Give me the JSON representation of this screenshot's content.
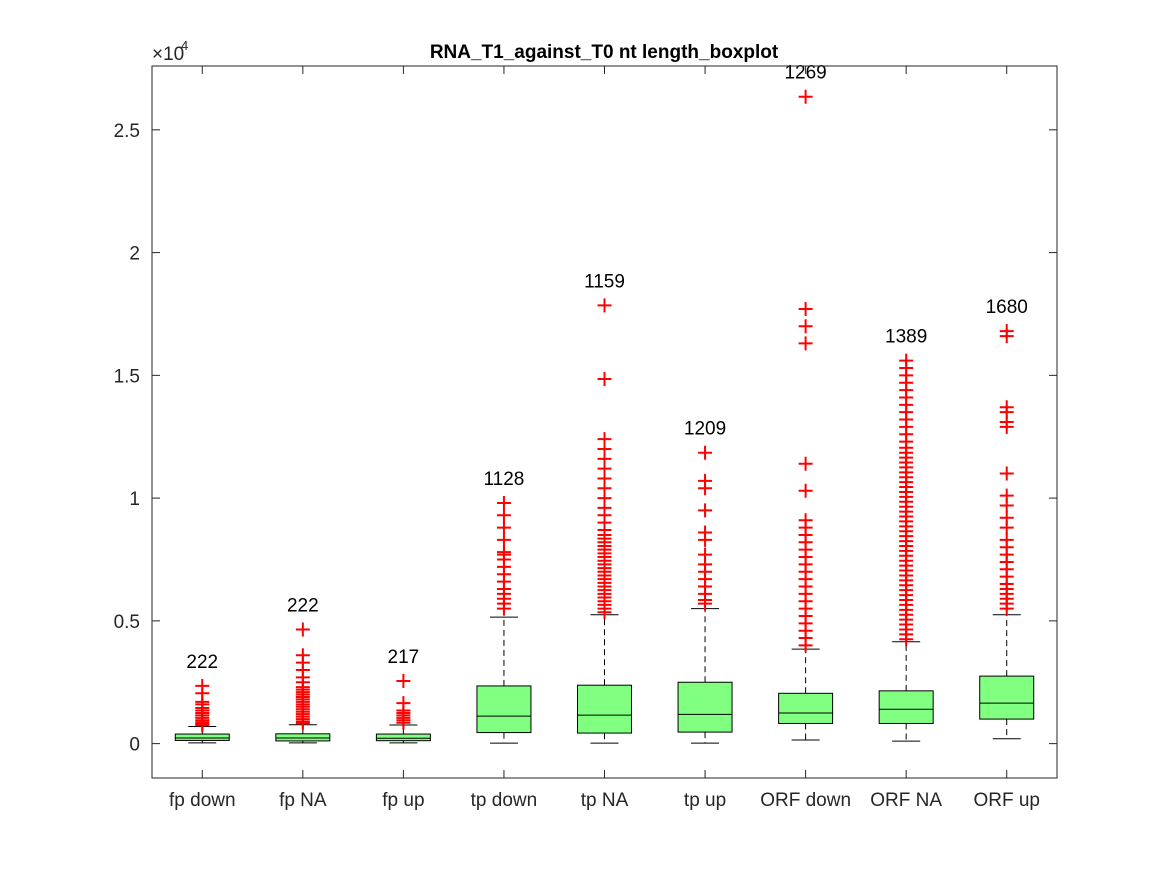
{
  "chart_data": {
    "type": "boxplot",
    "title": "RNA_T1_against_T0 nt length_boxplot",
    "xlabel": "",
    "ylabel": "",
    "y_exponent_label": "×10",
    "y_exponent_power": "4",
    "ylim": [
      -1400,
      27600
    ],
    "yticks": [
      0,
      5000,
      10000,
      15000,
      20000,
      25000
    ],
    "ytick_labels": [
      "0",
      "0.5",
      "1",
      "1.5",
      "2",
      "2.5"
    ],
    "categories": [
      "fp down",
      "fp NA",
      "fp up",
      "tp down",
      "tp NA",
      "tp up",
      "ORF down",
      "ORF NA",
      "ORF up"
    ],
    "counts": [
      "222",
      "222",
      "217",
      "1128",
      "1159",
      "1209",
      "1269",
      "1389",
      "1680"
    ],
    "boxes": [
      {
        "whisker_low": 30,
        "q1": 130,
        "median": 230,
        "q3": 390,
        "whisker_high": 700,
        "outliers": [
          750,
          800,
          870,
          950,
          1050,
          1150,
          1250,
          1350,
          1450,
          1600,
          1700,
          2050,
          2350
        ]
      },
      {
        "whisker_low": 30,
        "q1": 110,
        "median": 230,
        "q3": 400,
        "whisker_high": 770,
        "outliers": [
          830,
          900,
          1000,
          1100,
          1200,
          1300,
          1400,
          1500,
          1600,
          1700,
          1800,
          1900,
          2000,
          2100,
          2200,
          2300,
          2500,
          2700,
          3000,
          3300,
          3600,
          4650
        ]
      },
      {
        "whisker_low": 30,
        "q1": 120,
        "median": 220,
        "q3": 390,
        "whisker_high": 760,
        "outliers": [
          850,
          950,
          1050,
          1150,
          1250,
          1350,
          1650,
          2550
        ]
      },
      {
        "whisker_low": 20,
        "q1": 450,
        "median": 1120,
        "q3": 2350,
        "whisker_high": 5150,
        "outliers": [
          5500,
          5700,
          5900,
          6100,
          6300,
          6600,
          6900,
          7200,
          7500,
          7700,
          7800,
          8300,
          8800,
          9300,
          9800
        ]
      },
      {
        "whisker_low": 20,
        "q1": 430,
        "median": 1160,
        "q3": 2380,
        "whisker_high": 5250,
        "outliers": [
          5350,
          5500,
          5650,
          5800,
          5950,
          6100,
          6250,
          6400,
          6550,
          6700,
          6850,
          7000,
          7150,
          7300,
          7450,
          7600,
          7750,
          7900,
          8050,
          8200,
          8350,
          8500,
          8700,
          9000,
          9300,
          9600,
          10000,
          10400,
          10800,
          11200,
          11600,
          12000,
          12400,
          14850,
          17850
        ]
      },
      {
        "whisker_low": 20,
        "q1": 470,
        "median": 1190,
        "q3": 2500,
        "whisker_high": 5500,
        "outliers": [
          5700,
          5850,
          6100,
          6400,
          6700,
          7000,
          7300,
          7700,
          8300,
          8600,
          9500,
          10400,
          10700,
          11850
        ]
      },
      {
        "whisker_low": 150,
        "q1": 820,
        "median": 1250,
        "q3": 2050,
        "whisker_high": 3850,
        "outliers": [
          4000,
          4300,
          4600,
          4900,
          5200,
          5500,
          5800,
          6100,
          6400,
          6700,
          7000,
          7300,
          7600,
          7900,
          8200,
          8500,
          8800,
          9100,
          10300,
          11400,
          16300,
          17000,
          17700,
          26350
        ]
      },
      {
        "whisker_low": 100,
        "q1": 820,
        "median": 1400,
        "q3": 2150,
        "whisker_high": 4150,
        "outliers": [
          4250,
          4450,
          4650,
          4850,
          5050,
          5250,
          5450,
          5650,
          5850,
          6050,
          6250,
          6450,
          6650,
          6850,
          7050,
          7250,
          7450,
          7650,
          7850,
          8050,
          8250,
          8450,
          8650,
          8850,
          9050,
          9250,
          9450,
          9650,
          9850,
          10050,
          10250,
          10450,
          10650,
          10850,
          11050,
          11250,
          11450,
          11650,
          11850,
          12050,
          12300,
          12600,
          12900,
          13200,
          13500,
          13800,
          14100,
          14400,
          14700,
          15000,
          15300,
          15600
        ]
      },
      {
        "whisker_low": 200,
        "q1": 1000,
        "median": 1650,
        "q3": 2750,
        "whisker_high": 5250,
        "outliers": [
          5500,
          5700,
          5900,
          6100,
          6300,
          6500,
          6800,
          7100,
          7400,
          7700,
          8000,
          8300,
          8800,
          9200,
          9700,
          10100,
          11000,
          12900,
          13100,
          13500,
          13700,
          16600,
          16800
        ]
      }
    ],
    "colors": {
      "box_fill": "#80ff80",
      "outlier": "#ff0000",
      "median": "#000000",
      "axis": "#262626",
      "whisker": "#000000"
    },
    "grid": false,
    "box_style": "outline"
  }
}
